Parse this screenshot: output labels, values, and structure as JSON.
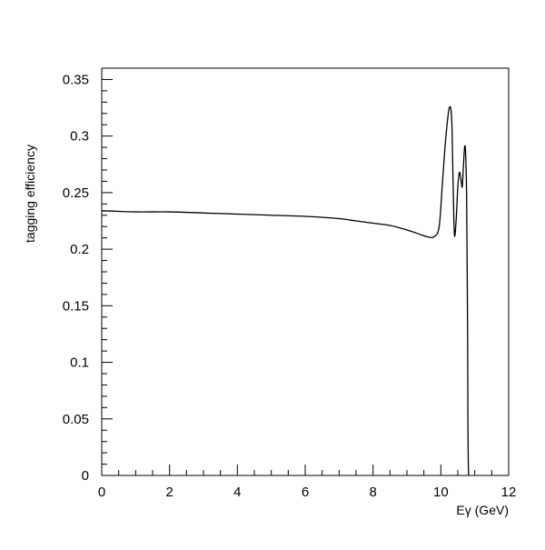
{
  "chart_data": {
    "type": "line",
    "title": "",
    "xlabel": "Eγ (GeV)",
    "ylabel": "tagging efficiency",
    "xlim": [
      0,
      12
    ],
    "ylim": [
      0,
      0.36
    ],
    "x_ticks": [
      0,
      2,
      4,
      6,
      8,
      10,
      12
    ],
    "x_tick_labels": [
      "0",
      "2",
      "4",
      "6",
      "8",
      "10",
      "12"
    ],
    "y_ticks": [
      0,
      0.05,
      0.1,
      0.15,
      0.2,
      0.25,
      0.3,
      0.35
    ],
    "y_tick_labels": [
      "0",
      "0.05",
      "0.1",
      "0.15",
      "0.2",
      "0.25",
      "0.3",
      "0.35"
    ],
    "grid": false,
    "legend": "none",
    "series": [
      {
        "color": "#000000",
        "x": [
          0,
          1,
          2,
          3,
          4,
          5,
          6,
          7,
          7.5,
          8,
          8.5,
          9,
          9.3,
          9.6,
          9.8,
          9.95,
          10.05,
          10.15,
          10.25,
          10.32,
          10.36,
          10.4,
          10.45,
          10.5,
          10.55,
          10.6,
          10.63,
          10.66,
          10.7,
          10.73,
          10.76,
          10.79,
          10.8,
          10.81,
          10.82
        ],
        "y": [
          0.234,
          0.233,
          0.233,
          0.232,
          0.231,
          0.23,
          0.229,
          0.227,
          0.225,
          0.223,
          0.221,
          0.217,
          0.214,
          0.211,
          0.211,
          0.22,
          0.26,
          0.3,
          0.325,
          0.315,
          0.26,
          0.213,
          0.225,
          0.255,
          0.268,
          0.26,
          0.255,
          0.27,
          0.29,
          0.285,
          0.245,
          0.12,
          0.04,
          0.01,
          0.0
        ]
      }
    ]
  }
}
